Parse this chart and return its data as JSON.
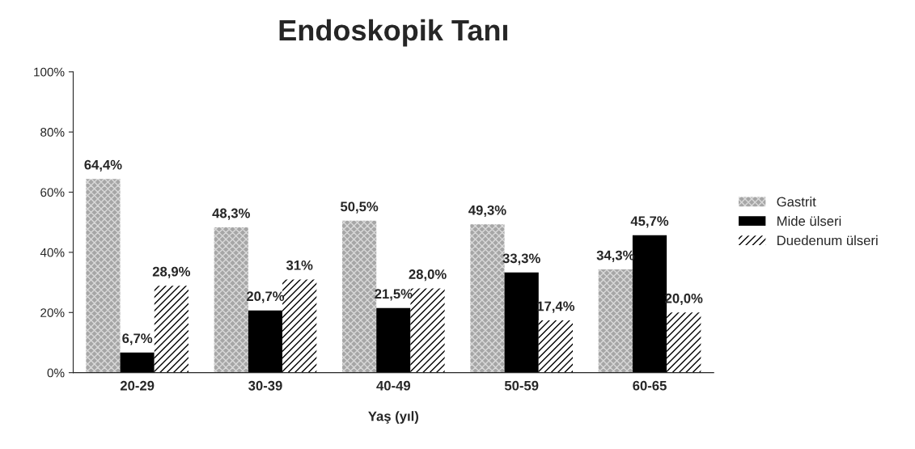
{
  "chart_data": {
    "type": "bar",
    "title": "Endoskopik Tanı",
    "xlabel": "Yaş (yıl)",
    "categories": [
      "20-29",
      "30-39",
      "40-49",
      "50-59",
      "60-65"
    ],
    "series": [
      {
        "name": "Gastrit",
        "color": "#a6a6a6",
        "values": [
          64.4,
          48.3,
          50.5,
          49.3,
          34.3
        ],
        "value_labels": [
          "64,4%",
          "48,3%",
          "50,5%",
          "49,3%",
          "34,3%"
        ]
      },
      {
        "name": "Mide ülseri",
        "color": "#000000",
        "values": [
          6.7,
          20.7,
          21.5,
          33.3,
          45.7
        ],
        "value_labels": [
          "6,7%",
          "20,7%",
          "21,5%",
          "33,3%",
          "45,7%"
        ]
      },
      {
        "name": "Duedenum ülseri",
        "color": "#ffffff",
        "values": [
          28.9,
          31,
          28.0,
          17.4,
          20.0
        ],
        "value_labels": [
          "28,9%",
          "31%",
          "28,0%",
          "17,4%",
          "20,0%"
        ]
      }
    ],
    "ylim": [
      0,
      100
    ],
    "yticks": [
      {
        "value": 0,
        "label": "0%"
      },
      {
        "value": 20,
        "label": "20%"
      },
      {
        "value": 40,
        "label": "40%"
      },
      {
        "value": 60,
        "label": "60%"
      },
      {
        "value": 80,
        "label": "80%"
      },
      {
        "value": 100,
        "label": "100%"
      }
    ],
    "grid": false,
    "legend": "right"
  }
}
